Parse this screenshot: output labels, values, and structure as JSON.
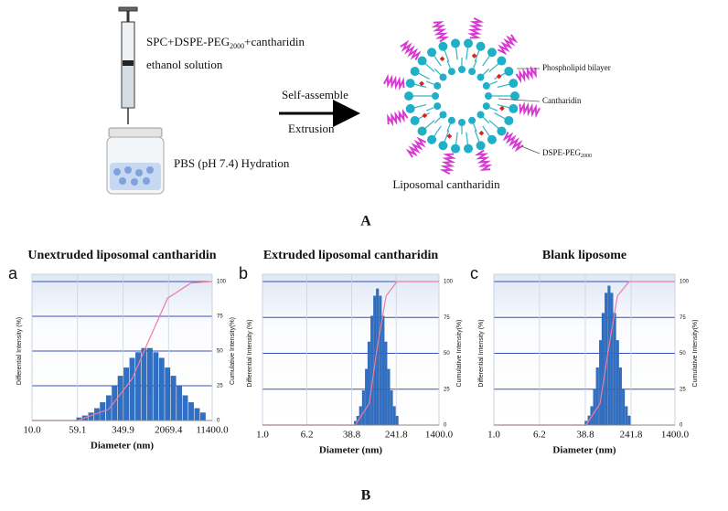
{
  "figure": {
    "panel_a_label": "A",
    "panel_b_label": "B",
    "mixture": {
      "line1": [
        "SPC+DSPE-PEG",
        "2000",
        "+cantharidin"
      ],
      "line2": "ethanol solution"
    },
    "hydration": "PBS (pH 7.4) Hydration",
    "step1": "Self-assemble",
    "step2": "Extrusion",
    "labels": {
      "bilayer": "Phospholipid bilayer",
      "drug": "Cantharidin",
      "peg": [
        "DSPE-PEG",
        "2000"
      ]
    },
    "product": "Liposomal cantharidin"
  },
  "chart_data": [
    {
      "type": "histogram",
      "panel_label": "a",
      "title": "Unextruded liposomal cantharidin",
      "xlabel": "Diameter (nm)",
      "ylabel": "Differential Intensity (%)",
      "y2label": "Cumulative Intensity(%)",
      "log_x": true,
      "xlim": [
        10,
        11400
      ],
      "xticks": [
        {
          "value": 10,
          "label": "10.0"
        },
        59.1,
        349.9,
        2069.4,
        {
          "value": 11400,
          "label": "11400.0"
        }
      ],
      "ylim": [
        0,
        100
      ],
      "y2lim": [
        0,
        100
      ],
      "y2ticks": [
        0,
        25,
        50,
        75,
        100
      ],
      "grid": true,
      "bars": {
        "color": "#2f6fc4",
        "x": [
          63,
          79,
          100,
          126,
          158,
          200,
          251,
          316,
          398,
          501,
          631,
          794,
          1000,
          1259,
          1585,
          1995,
          2512,
          3162,
          3981,
          5012,
          6310,
          7943
        ],
        "values": [
          2,
          3.4,
          5.6,
          8.7,
          13,
          18,
          25,
          32,
          38,
          45,
          49,
          52,
          52,
          49,
          45,
          38,
          32,
          25,
          18,
          13,
          8.7,
          5.6
        ]
      },
      "cumulative": {
        "color": "#f07ca0",
        "axis": "y2",
        "x": [
          10,
          59,
          200,
          500,
          900,
          2000,
          5000,
          11400
        ],
        "values": [
          0,
          0,
          8,
          30,
          55,
          88,
          99,
          100
        ]
      }
    },
    {
      "type": "histogram",
      "panel_label": "b",
      "title": "Extruded liposomal cantharidin",
      "xlabel": "Diameter (nm)",
      "ylabel": "Differential Intensity (%)",
      "y2label": "Cumulative Intensity(%)",
      "log_x": true,
      "xlim": [
        1,
        1400
      ],
      "xticks": [
        {
          "value": 1,
          "label": "1.0"
        },
        6.2,
        38.8,
        241.8,
        {
          "value": 1400,
          "label": "1400.0"
        }
      ],
      "ylim": [
        0,
        100
      ],
      "y2lim": [
        0,
        100
      ],
      "y2ticks": [
        0,
        25,
        50,
        75,
        100
      ],
      "grid": true,
      "bars": {
        "color": "#2f6fc4",
        "x": [
          45,
          50,
          56,
          63,
          71,
          79,
          89,
          100,
          112,
          126,
          141,
          158,
          178,
          200,
          224,
          251
        ],
        "values": [
          2.7,
          6.3,
          13,
          24,
          39,
          58,
          76,
          90,
          95,
          90,
          76,
          58,
          39,
          24,
          13,
          6.3
        ]
      },
      "cumulative": {
        "color": "#f07ca0",
        "axis": "y2",
        "x": [
          1,
          45,
          80,
          112,
          160,
          250,
          1400
        ],
        "values": [
          0,
          0,
          15,
          55,
          90,
          100,
          100
        ]
      }
    },
    {
      "type": "histogram",
      "panel_label": "c",
      "title": "Blank liposome",
      "xlabel": "Diameter (nm)",
      "ylabel": "Differential Intensity (%)",
      "y2label": "Cumulative Intensity(%)",
      "log_x": true,
      "xlim": [
        1,
        1400
      ],
      "xticks": [
        {
          "value": 1,
          "label": "1.0"
        },
        6.2,
        38.8,
        241.8,
        {
          "value": 1400,
          "label": "1400.0"
        }
      ],
      "ylim": [
        0,
        100
      ],
      "y2lim": [
        0,
        100
      ],
      "y2ticks": [
        0,
        25,
        50,
        75,
        100
      ],
      "grid": true,
      "bars": {
        "color": "#2f6fc4",
        "x": [
          40,
          45,
          50,
          56,
          63,
          71,
          79,
          89,
          100,
          112,
          126,
          141,
          158,
          178,
          200,
          224
        ],
        "values": [
          2.8,
          6.4,
          13,
          25,
          40,
          59,
          78,
          92,
          97,
          92,
          78,
          59,
          40,
          25,
          13,
          6.4
        ]
      },
      "cumulative": {
        "color": "#f07ca0",
        "axis": "y2",
        "x": [
          1,
          40,
          70,
          100,
          140,
          224,
          1400
        ],
        "values": [
          0,
          0,
          15,
          55,
          90,
          100,
          100
        ]
      }
    }
  ]
}
